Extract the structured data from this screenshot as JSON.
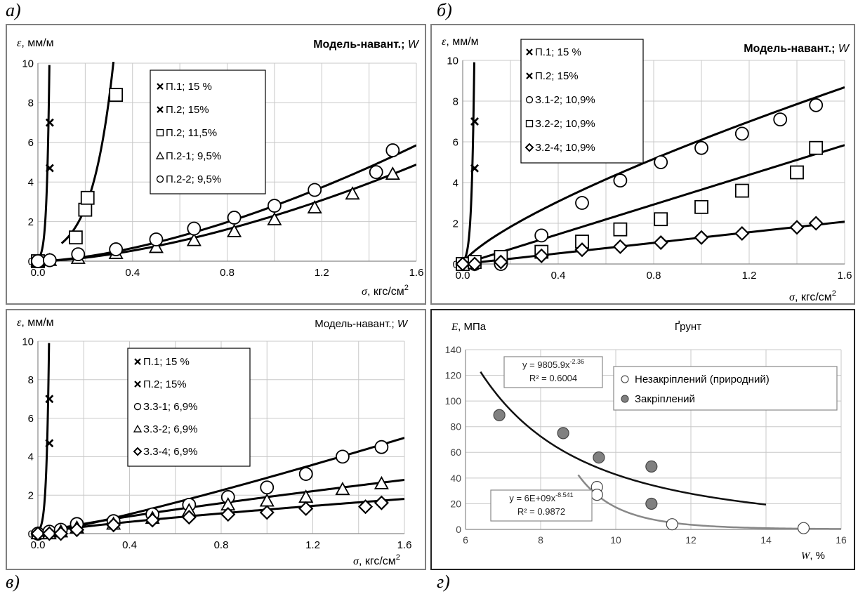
{
  "figure_labels": {
    "a": "а)",
    "b": "б)",
    "c": "в)",
    "d": "г)"
  },
  "chart_data": [
    {
      "id": "a",
      "type": "scatter",
      "title": "Модель-навант.; W",
      "ylabel": "ε, мм/м",
      "xlabel": "σ, кгс/см2",
      "xlim": [
        0,
        1.6
      ],
      "ylim": [
        0,
        10
      ],
      "xticks": [
        "0.0",
        "0.4",
        "0.8",
        "1.2",
        "1.6"
      ],
      "yticks": [
        "0",
        "2",
        "4",
        "6",
        "8",
        "10"
      ],
      "grid": true,
      "legend_position": "top-center",
      "series": [
        {
          "name": "П.1; 15 %",
          "marker": "x",
          "x": [
            0.05,
            0.05
          ],
          "y": [
            7.0,
            4.7
          ],
          "curve": {
            "kind": "exp",
            "a": 0.12,
            "b": 91,
            "xmax": 0.0485
          }
        },
        {
          "name": "П.2; 15%",
          "marker": "x",
          "x": [
            0.05,
            0.05
          ],
          "y": [
            7.0,
            4.7
          ]
        },
        {
          "name": "П.2; 11,5%",
          "marker": "square",
          "x": [
            0,
            0.16,
            0.2,
            0.21,
            0.33
          ],
          "y": [
            0,
            1.2,
            2.6,
            3.2,
            8.4
          ],
          "curve": {
            "kind": "exp",
            "a": 0.3,
            "b": 11,
            "xmin": 0.1,
            "xmax": 0.386
          }
        },
        {
          "name": "П.2-1; 9,5%",
          "marker": "triangle",
          "x": [
            0,
            0.05,
            0.17,
            0.33,
            0.5,
            0.66,
            0.83,
            1.0,
            1.17,
            1.33,
            1.5
          ],
          "y": [
            0,
            0.05,
            0.15,
            0.4,
            0.7,
            1.05,
            1.5,
            2.1,
            2.7,
            3.4,
            4.4
          ],
          "curve": {
            "kind": "power",
            "a": 2.3,
            "p": 1.6
          }
        },
        {
          "name": "П.2-2; 9,5%",
          "marker": "circle",
          "x": [
            0,
            0.05,
            0.17,
            0.33,
            0.5,
            0.66,
            0.83,
            1.0,
            1.17,
            1.43,
            1.5
          ],
          "y": [
            0,
            0.05,
            0.35,
            0.6,
            1.1,
            1.65,
            2.2,
            2.8,
            3.6,
            4.5,
            5.6
          ],
          "curve": {
            "kind": "power",
            "a": 2.8,
            "p": 1.57
          }
        }
      ]
    },
    {
      "id": "b",
      "type": "scatter",
      "title": "Модель-навант.; W",
      "ylabel": "ε, мм/м",
      "xlabel": "σ, кгс/см2",
      "xlim": [
        0,
        1.6
      ],
      "ylim": [
        0,
        10
      ],
      "xticks": [
        "0.0",
        "0.4",
        "0.8",
        "1.2",
        "1.6"
      ],
      "yticks": [
        "0",
        "2",
        "4",
        "6",
        "8",
        "10"
      ],
      "grid": true,
      "legend_position": "top-left",
      "series": [
        {
          "name": "П.1; 15 %",
          "marker": "x",
          "x": [
            0.05,
            0.05
          ],
          "y": [
            7.0,
            4.7
          ],
          "curve": {
            "kind": "exp",
            "a": 0.12,
            "b": 91,
            "xmax": 0.0485
          }
        },
        {
          "name": "П.2; 15%",
          "marker": "x",
          "x": [
            0.05,
            0.05
          ],
          "y": [
            7.0,
            4.7
          ]
        },
        {
          "name": "З.1-2; 10,9%",
          "marker": "circle",
          "x": [
            0,
            0.05,
            0.16,
            0.33,
            0.5,
            0.66,
            0.83,
            1.0,
            1.17,
            1.33,
            1.48
          ],
          "y": [
            0,
            0,
            0,
            1.4,
            3.0,
            4.1,
            5.0,
            5.7,
            6.4,
            7.1,
            7.8
          ],
          "curve": {
            "kind": "power",
            "a": 6.1,
            "p": 0.75
          }
        },
        {
          "name": "З.2-2; 10,9%",
          "marker": "square",
          "x": [
            0,
            0.05,
            0.16,
            0.33,
            0.5,
            0.66,
            0.83,
            1.0,
            1.17,
            1.4,
            1.48
          ],
          "y": [
            0,
            0.1,
            0.35,
            0.6,
            1.1,
            1.7,
            2.2,
            2.8,
            3.6,
            4.5,
            5.7
          ],
          "curve": {
            "kind": "line",
            "a": 3.65
          }
        },
        {
          "name": "З.2-4; 10,9%",
          "marker": "diamond",
          "x": [
            0,
            0.05,
            0.16,
            0.33,
            0.5,
            0.66,
            0.83,
            1.0,
            1.17,
            1.4,
            1.48
          ],
          "y": [
            0,
            0,
            0.1,
            0.4,
            0.7,
            0.85,
            1.05,
            1.3,
            1.5,
            1.8,
            2.0
          ],
          "curve": {
            "kind": "line",
            "a": 1.3
          }
        }
      ]
    },
    {
      "id": "c",
      "type": "scatter",
      "title": "Модель-навант.; W",
      "ylabel": "ε, мм/м",
      "xlabel": "σ, кгс/см2",
      "xlim": [
        0,
        1.6
      ],
      "ylim": [
        0,
        10
      ],
      "xticks": [
        "0.0",
        "0.4",
        "0.8",
        "1.2",
        "1.6"
      ],
      "yticks": [
        "0",
        "2",
        "4",
        "6",
        "8",
        "10"
      ],
      "grid": true,
      "legend_position": "top-center",
      "series": [
        {
          "name": "П.1; 15 %",
          "marker": "x",
          "x": [
            0.05,
            0.05
          ],
          "y": [
            7.0,
            4.7
          ],
          "curve": {
            "kind": "exp",
            "a": 0.12,
            "b": 91,
            "xmax": 0.0485
          }
        },
        {
          "name": "П.2; 15%",
          "marker": "x",
          "x": [
            0.05,
            0.05
          ],
          "y": [
            7.0,
            4.7
          ]
        },
        {
          "name": "З.3-1; 6,9%",
          "marker": "circle",
          "x": [
            0,
            0.05,
            0.1,
            0.17,
            0.33,
            0.5,
            0.66,
            0.83,
            1.0,
            1.17,
            1.33,
            1.5
          ],
          "y": [
            0,
            0.1,
            0.2,
            0.5,
            0.65,
            1.0,
            1.5,
            1.9,
            2.4,
            3.1,
            4.0,
            4.5
          ],
          "curve": {
            "kind": "power",
            "a": 2.9,
            "p": 1.15
          }
        },
        {
          "name": "З.3-2; 6,9%",
          "marker": "triangle",
          "x": [
            0,
            0.05,
            0.1,
            0.17,
            0.33,
            0.5,
            0.66,
            0.83,
            1.0,
            1.17,
            1.33,
            1.5
          ],
          "y": [
            0,
            0,
            0.1,
            0.3,
            0.5,
            0.8,
            1.2,
            1.5,
            1.7,
            1.9,
            2.3,
            2.6
          ],
          "curve": {
            "kind": "power",
            "a": 1.9,
            "p": 0.82
          }
        },
        {
          "name": "З.3-4; 6,9%",
          "marker": "diamond",
          "x": [
            0,
            0.05,
            0.1,
            0.17,
            0.33,
            0.5,
            0.66,
            0.83,
            1.0,
            1.17,
            1.43,
            1.5
          ],
          "y": [
            0,
            0,
            0,
            0.2,
            0.45,
            0.7,
            0.85,
            1.0,
            1.1,
            1.3,
            1.4,
            1.6
          ],
          "curve": {
            "kind": "power",
            "a": 1.25,
            "p": 0.78
          }
        }
      ]
    },
    {
      "id": "d",
      "type": "scatter",
      "title": "Ґрунт",
      "ylabel": "E, МПа",
      "xlabel": "W, %",
      "xlim": [
        6,
        16
      ],
      "ylim": [
        0,
        140
      ],
      "xticks": [
        "6",
        "8",
        "10",
        "12",
        "14",
        "16"
      ],
      "yticks": [
        "0",
        "20",
        "40",
        "60",
        "80",
        "100",
        "120",
        "140"
      ],
      "grid": true,
      "legend_position": "top-right",
      "series": [
        {
          "name": "Незакріплений (природний)",
          "marker": "circle-open",
          "x": [
            9.5,
            9.5,
            11.5,
            15.0
          ],
          "y": [
            33,
            27,
            4,
            1
          ]
        },
        {
          "name": "Закріплений",
          "marker": "circle-filled",
          "x": [
            6.9,
            8.6,
            9.55,
            10.95,
            10.95
          ],
          "y": [
            89,
            75,
            56,
            49,
            20
          ]
        }
      ],
      "trendlines": [
        {
          "equation": "y = 9805.9x-2.36",
          "r2": "R² = 0.6004",
          "a": 9805.9,
          "b": -2.36,
          "xmin": 6.4,
          "xmax": 14,
          "color": "#111111"
        },
        {
          "equation": "y = 6E+09x-8.541",
          "r2": "R² = 0.9872",
          "a": 6000000000.0,
          "b": -8.541,
          "xmin": 9.0,
          "xmax": 16,
          "color": "#888888"
        }
      ]
    }
  ]
}
